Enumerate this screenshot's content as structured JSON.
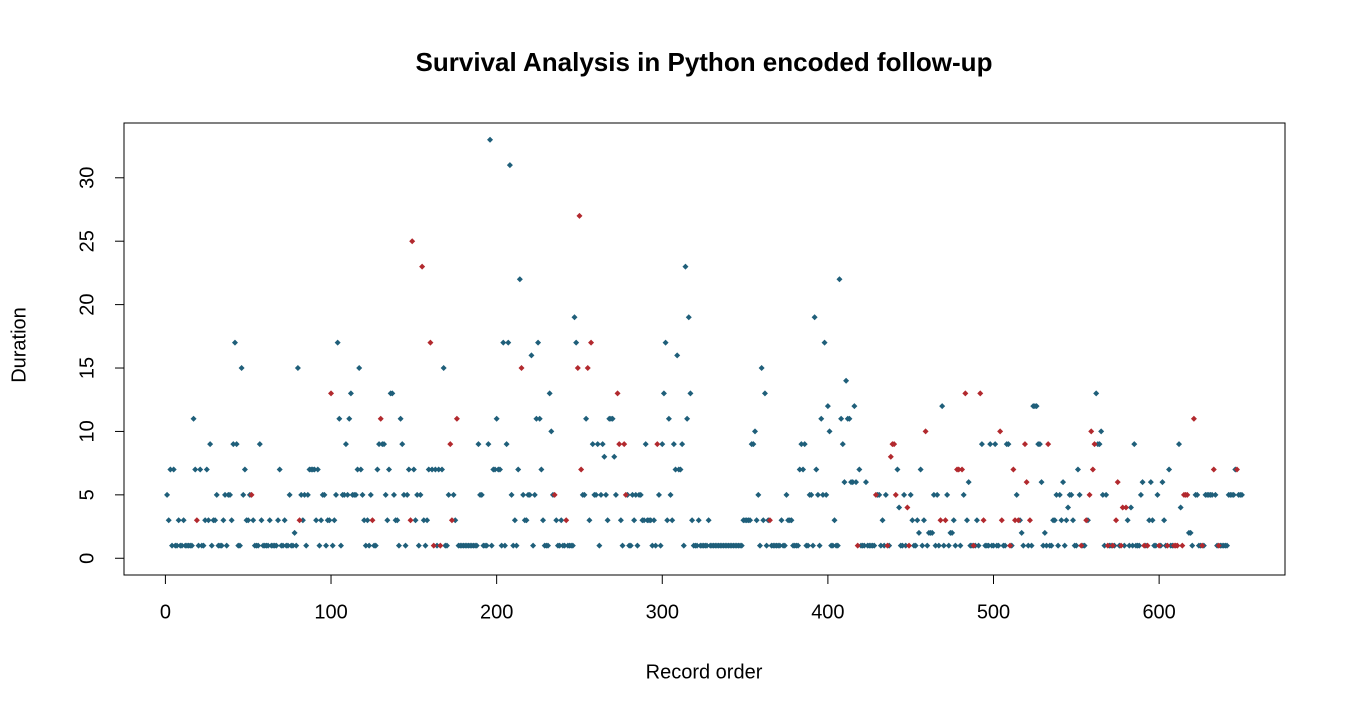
{
  "chart_data": {
    "type": "scatter",
    "title": "Survival Analysis in Python encoded follow-up",
    "x_label": "Record order",
    "y_label": "Duration",
    "xlim": [
      -25,
      676
    ],
    "ylim": [
      -1.32,
      34.32
    ],
    "xticks": [
      0,
      100,
      200,
      300,
      400,
      500,
      600
    ],
    "yticks": [
      0,
      5,
      10,
      15,
      20,
      25,
      30
    ],
    "series": [
      {
        "color": "#1f5f7a",
        "x": [
          1,
          2,
          3,
          4,
          5,
          6,
          7,
          8,
          9,
          10,
          11,
          12,
          13,
          14,
          15,
          16,
          17,
          18,
          20,
          21,
          22,
          23,
          24,
          25,
          26,
          27,
          28,
          29,
          30,
          31,
          32,
          33,
          34,
          35,
          36,
          37,
          38,
          39,
          40,
          41,
          42,
          43,
          44,
          45,
          46,
          47,
          48,
          49,
          50,
          51,
          53,
          54,
          55,
          56,
          57,
          58,
          59,
          60,
          61,
          62,
          63,
          64,
          65,
          66,
          67,
          68,
          69,
          70,
          71,
          72,
          73,
          74,
          75,
          76,
          77,
          78,
          79,
          80,
          82,
          83,
          84,
          85,
          86,
          87,
          88,
          89,
          90,
          91,
          92,
          93,
          94,
          95,
          96,
          97,
          98,
          99,
          101,
          102,
          103,
          104,
          105,
          106,
          107,
          108,
          109,
          110,
          111,
          112,
          113,
          114,
          115,
          116,
          117,
          118,
          119,
          120,
          121,
          122,
          123,
          124,
          126,
          127,
          128,
          129,
          131,
          132,
          133,
          134,
          135,
          136,
          137,
          138,
          139,
          140,
          141,
          142,
          143,
          144,
          145,
          146,
          147,
          150,
          151,
          152,
          153,
          154,
          156,
          157,
          158,
          159,
          161,
          163,
          164,
          165,
          167,
          168,
          169,
          170,
          171,
          174,
          175,
          177,
          178,
          179,
          180,
          181,
          182,
          183,
          184,
          185,
          186,
          187,
          188,
          189,
          190,
          191,
          192,
          193,
          194,
          195,
          196,
          197,
          198,
          199,
          200,
          201,
          202,
          203,
          204,
          205,
          206,
          207,
          208,
          209,
          210,
          211,
          212,
          213,
          214,
          216,
          217,
          218,
          219,
          220,
          221,
          222,
          223,
          224,
          225,
          226,
          227,
          228,
          229,
          230,
          231,
          232,
          233,
          234,
          236,
          237,
          238,
          239,
          240,
          241,
          243,
          244,
          245,
          246,
          247,
          248,
          252,
          253,
          254,
          256,
          258,
          259,
          260,
          261,
          262,
          263,
          264,
          265,
          266,
          267,
          268,
          269,
          270,
          271,
          272,
          275,
          276,
          279,
          280,
          281,
          282,
          283,
          284,
          285,
          286,
          287,
          288,
          289,
          290,
          291,
          292,
          293,
          294,
          295,
          296,
          298,
          299,
          300,
          301,
          302,
          303,
          304,
          305,
          306,
          307,
          308,
          309,
          310,
          311,
          312,
          313,
          314,
          315,
          316,
          317,
          318,
          319,
          320,
          321,
          322,
          323,
          324,
          325,
          326,
          327,
          328,
          329,
          330,
          331,
          332,
          333,
          334,
          335,
          336,
          337,
          338,
          339,
          340,
          341,
          342,
          343,
          344,
          345,
          346,
          347,
          348,
          349,
          350,
          351,
          352,
          353,
          354,
          355,
          356,
          357,
          358,
          359,
          360,
          361,
          362,
          363,
          364,
          366,
          367,
          368,
          369,
          370,
          371,
          372,
          373,
          374,
          375,
          376,
          377,
          378,
          379,
          380,
          381,
          382,
          383,
          384,
          385,
          386,
          387,
          388,
          389,
          390,
          391,
          392,
          393,
          394,
          395,
          396,
          397,
          398,
          399,
          400,
          401,
          402,
          403,
          404,
          405,
          406,
          407,
          408,
          409,
          410,
          411,
          412,
          413,
          414,
          415,
          416,
          417,
          419,
          420,
          421,
          422,
          423,
          424,
          425,
          426,
          427,
          428,
          430,
          431,
          432,
          433,
          434,
          435,
          437,
          442,
          443,
          444,
          445,
          446,
          447,
          450,
          451,
          452,
          453,
          454,
          455,
          456,
          457,
          458,
          460,
          461,
          462,
          463,
          464,
          465,
          466,
          467,
          469,
          470,
          472,
          473,
          474,
          475,
          476,
          477,
          480,
          482,
          484,
          485,
          486,
          487,
          489,
          490,
          491,
          493,
          495,
          496,
          497,
          498,
          499,
          500,
          501,
          502,
          503,
          506,
          507,
          508,
          509,
          511,
          514,
          516,
          517,
          518,
          521,
          523,
          524,
          525,
          526,
          527,
          528,
          529,
          530,
          531,
          532,
          534,
          535,
          536,
          537,
          538,
          539,
          540,
          541,
          542,
          543,
          544,
          545,
          546,
          547,
          548,
          549,
          550,
          551,
          552,
          554,
          555,
          557,
          562,
          563,
          564,
          565,
          566,
          567,
          568,
          570,
          571,
          573,
          576,
          579,
          581,
          582,
          583,
          584,
          585,
          586,
          587,
          588,
          589,
          590,
          592,
          594,
          595,
          596,
          597,
          598,
          599,
          601,
          602,
          603,
          604,
          606,
          607,
          608,
          612,
          613,
          618,
          619,
          620,
          622,
          623,
          624,
          625,
          627,
          628,
          629,
          630,
          631,
          632,
          634,
          635,
          637,
          638,
          639,
          640,
          641,
          642,
          643,
          644,
          645,
          646,
          648,
          649,
          650
        ],
        "values": [
          5,
          3,
          7,
          1,
          7,
          1,
          1,
          3,
          1,
          1,
          3,
          1,
          1,
          1,
          1,
          1,
          11,
          7,
          1,
          7,
          1,
          1,
          3,
          7,
          3,
          9,
          1,
          3,
          3,
          5,
          1,
          1,
          1,
          3,
          5,
          1,
          5,
          5,
          3,
          9,
          17,
          9,
          1,
          1,
          15,
          5,
          7,
          3,
          3,
          5,
          3,
          1,
          1,
          1,
          9,
          3,
          1,
          1,
          1,
          1,
          3,
          1,
          1,
          1,
          1,
          3,
          7,
          1,
          1,
          3,
          1,
          1,
          5,
          1,
          1,
          2,
          1,
          15,
          5,
          3,
          5,
          1,
          5,
          7,
          7,
          7,
          7,
          3,
          7,
          1,
          3,
          5,
          5,
          1,
          3,
          3,
          1,
          3,
          5,
          17,
          11,
          1,
          5,
          5,
          9,
          5,
          11,
          13,
          5,
          5,
          5,
          7,
          15,
          7,
          5,
          3,
          1,
          3,
          1,
          5,
          1,
          1,
          7,
          9,
          9,
          9,
          5,
          3,
          7,
          13,
          13,
          5,
          3,
          3,
          1,
          11,
          9,
          5,
          1,
          5,
          7,
          7,
          3,
          5,
          1,
          5,
          3,
          1,
          3,
          7,
          7,
          7,
          1,
          7,
          7,
          15,
          1,
          1,
          5,
          5,
          3,
          1,
          1,
          1,
          1,
          1,
          1,
          1,
          1,
          1,
          1,
          1,
          1,
          9,
          5,
          5,
          1,
          1,
          1,
          9,
          33,
          1,
          7,
          7,
          11,
          7,
          7,
          1,
          17,
          1,
          9,
          17,
          31,
          5,
          1,
          3,
          1,
          7,
          22,
          5,
          3,
          3,
          5,
          5,
          16,
          1,
          5,
          11,
          17,
          11,
          7,
          3,
          1,
          1,
          1,
          13,
          10,
          5,
          3,
          1,
          1,
          3,
          1,
          1,
          1,
          1,
          1,
          1,
          19,
          17,
          5,
          5,
          11,
          3,
          9,
          5,
          5,
          9,
          1,
          5,
          9,
          8,
          5,
          3,
          11,
          11,
          11,
          8,
          5,
          3,
          1,
          5,
          1,
          1,
          5,
          3,
          5,
          1,
          5,
          5,
          3,
          3,
          9,
          3,
          3,
          3,
          1,
          3,
          1,
          5,
          1,
          9,
          13,
          17,
          3,
          11,
          5,
          3,
          9,
          7,
          16,
          7,
          7,
          9,
          1,
          23,
          11,
          19,
          13,
          3,
          1,
          1,
          1,
          3,
          1,
          1,
          1,
          1,
          1,
          3,
          1,
          1,
          1,
          1,
          1,
          1,
          1,
          1,
          1,
          1,
          1,
          1,
          1,
          1,
          1,
          1,
          1,
          1,
          1,
          1,
          3,
          3,
          3,
          3,
          3,
          9,
          9,
          10,
          3,
          5,
          1,
          15,
          3,
          13,
          1,
          3,
          1,
          1,
          1,
          1,
          1,
          1,
          3,
          1,
          1,
          5,
          3,
          3,
          3,
          1,
          1,
          1,
          1,
          7,
          9,
          7,
          9,
          1,
          1,
          5,
          5,
          1,
          19,
          7,
          5,
          1,
          11,
          5,
          17,
          5,
          12,
          10,
          1,
          1,
          3,
          1,
          1,
          22,
          11,
          9,
          6,
          14,
          11,
          11,
          6,
          6,
          12,
          6,
          7,
          1,
          1,
          1,
          6,
          1,
          1,
          1,
          1,
          1,
          5,
          5,
          1,
          3,
          1,
          5,
          1,
          7,
          4,
          1,
          1,
          5,
          1,
          5,
          3,
          1,
          1,
          3,
          2,
          7,
          1,
          3,
          1,
          2,
          2,
          2,
          5,
          1,
          5,
          1,
          12,
          1,
          5,
          1,
          2,
          2,
          3,
          1,
          1,
          5,
          3,
          6,
          1,
          1,
          1,
          3,
          1,
          9,
          1,
          1,
          1,
          9,
          1,
          1,
          9,
          1,
          1,
          1,
          1,
          9,
          9,
          1,
          5,
          3,
          2,
          1,
          1,
          1,
          12,
          12,
          12,
          9,
          9,
          6,
          1,
          2,
          1,
          1,
          1,
          3,
          3,
          5,
          1,
          5,
          3,
          6,
          1,
          3,
          4,
          5,
          5,
          3,
          1,
          1,
          7,
          5,
          1,
          1,
          3,
          13,
          9,
          9,
          10,
          5,
          1,
          5,
          1,
          1,
          1,
          1,
          1,
          3,
          1,
          4,
          1,
          9,
          1,
          1,
          1,
          5,
          6,
          1,
          3,
          6,
          3,
          1,
          1,
          5,
          1,
          6,
          3,
          1,
          7,
          1,
          1,
          9,
          4,
          2,
          2,
          1,
          5,
          5,
          1,
          1,
          1,
          5,
          5,
          5,
          5,
          5,
          5,
          1,
          1,
          1,
          1,
          1,
          1,
          5,
          5,
          5,
          5,
          7,
          5,
          5,
          5
        ]
      },
      {
        "color": "#b2292e",
        "x": [
          19,
          52,
          81,
          100,
          125,
          130,
          148,
          149,
          155,
          160,
          162,
          166,
          172,
          173,
          176,
          215,
          235,
          242,
          249,
          250,
          251,
          255,
          257,
          273,
          274,
          277,
          278,
          297,
          365,
          418,
          429,
          436,
          438,
          439,
          440,
          441,
          448,
          449,
          459,
          468,
          471,
          478,
          479,
          481,
          483,
          488,
          492,
          494,
          504,
          505,
          510,
          512,
          513,
          515,
          519,
          520,
          522,
          533,
          553,
          556,
          558,
          559,
          560,
          561,
          569,
          572,
          574,
          575,
          577,
          578,
          580,
          591,
          593,
          600,
          605,
          609,
          610,
          611,
          614,
          615,
          616,
          617,
          621,
          626,
          633,
          636,
          647
        ],
        "values": [
          3,
          5,
          3,
          13,
          3,
          11,
          3,
          25,
          23,
          17,
          1,
          1,
          9,
          3,
          11,
          15,
          5,
          3,
          15,
          27,
          7,
          15,
          17,
          13,
          9,
          9,
          5,
          9,
          3,
          1,
          5,
          1,
          8,
          9,
          9,
          5,
          4,
          1,
          10,
          3,
          3,
          7,
          7,
          7,
          13,
          1,
          13,
          3,
          10,
          3,
          1,
          7,
          3,
          3,
          9,
          6,
          3,
          9,
          1,
          3,
          5,
          10,
          7,
          9,
          1,
          1,
          3,
          6,
          1,
          4,
          4,
          1,
          1,
          1,
          1,
          1,
          1,
          1,
          1,
          5,
          5,
          5,
          11,
          1,
          7,
          1,
          7
        ]
      }
    ]
  }
}
